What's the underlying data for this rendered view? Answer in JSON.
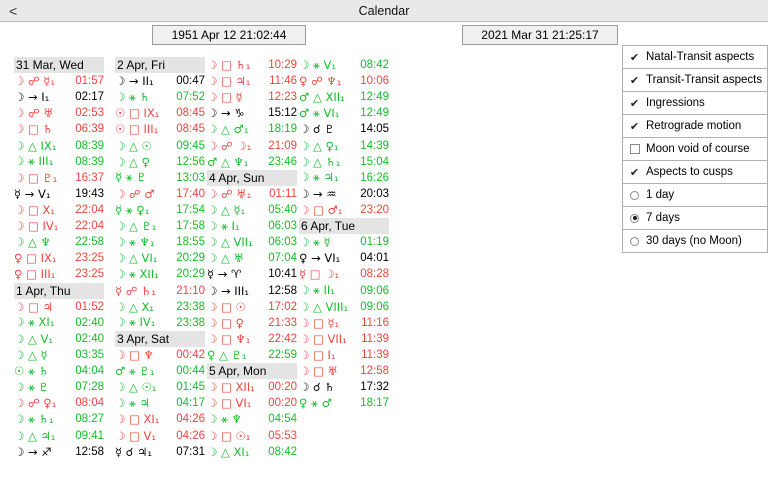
{
  "window": {
    "title": "Calendar",
    "back_label": "<"
  },
  "dates": {
    "natal": "1951 Apr 12 21:02:44",
    "transit": "2021 Mar 31 21:25:17"
  },
  "colors": {
    "hard_aspect": "#ee453e",
    "soft_aspect": "#16bd2b",
    "neutral": "#000000",
    "header_bg": "#e4e4e4"
  },
  "panel": {
    "items": [
      {
        "kind": "checkbox",
        "label": "Natal-Transit aspects",
        "checked": true
      },
      {
        "kind": "checkbox",
        "label": "Transit-Transit aspects",
        "checked": true
      },
      {
        "kind": "checkbox",
        "label": "Ingressions",
        "checked": true
      },
      {
        "kind": "checkbox",
        "label": "Retrograde motion",
        "checked": true
      },
      {
        "kind": "checkbox",
        "label": "Moon void of course",
        "checked": false
      },
      {
        "kind": "checkbox",
        "label": "Aspects to cusps",
        "checked": true
      },
      {
        "kind": "radio",
        "label": "1 day",
        "checked": false
      },
      {
        "kind": "radio",
        "label": "7 days",
        "checked": true
      },
      {
        "kind": "radio",
        "label": "30 days (no Moon)",
        "checked": false
      }
    ]
  },
  "calendar": {
    "columns": [
      {
        "items": [
          {
            "h": "31 Mar, Wed"
          },
          {
            "s": "☽ ☍ ☿₁",
            "t": "01:57",
            "c": "r"
          },
          {
            "s": "☽ → I₁",
            "t": "02:17",
            "c": "k"
          },
          {
            "s": "☽ ☍ ♅",
            "t": "02:53",
            "c": "r"
          },
          {
            "s": "☽ □ ♄",
            "t": "06:39",
            "c": "r"
          },
          {
            "s": "☽ △ IX₁",
            "t": "08:39",
            "c": "g"
          },
          {
            "s": "☽ ⚹ III₁",
            "t": "08:39",
            "c": "g"
          },
          {
            "s": "☽ □ ♇₁",
            "t": "16:37",
            "c": "r"
          },
          {
            "s": "☿ → V₁",
            "t": "19:43",
            "c": "k"
          },
          {
            "s": "☽ □ X₁",
            "t": "22:04",
            "c": "r"
          },
          {
            "s": "☽ □ IV₁",
            "t": "22:04",
            "c": "r"
          },
          {
            "s": "☽ △ ♆",
            "t": "22:58",
            "c": "g"
          },
          {
            "s": "♀ □ IX₁",
            "t": "23:25",
            "c": "r"
          },
          {
            "s": "♀ □ III₁",
            "t": "23:25",
            "c": "r"
          },
          {
            "h": "1 Apr, Thu"
          },
          {
            "s": "☽ □ ♃",
            "t": "01:52",
            "c": "r"
          },
          {
            "s": "☽ ⚹ XI₁",
            "t": "02:40",
            "c": "g"
          },
          {
            "s": "☽ △ V₁",
            "t": "02:40",
            "c": "g"
          },
          {
            "s": "☽ △ ☿",
            "t": "03:35",
            "c": "g"
          },
          {
            "s": "☉ ⚹ ♄",
            "t": "04:04",
            "c": "g"
          },
          {
            "s": "☽ ⚹ ♇",
            "t": "07:28",
            "c": "g"
          },
          {
            "s": "☽ ☍ ♀₁",
            "t": "08:04",
            "c": "r"
          },
          {
            "s": "☽ ⚹ ♄₁",
            "t": "08:27",
            "c": "g"
          },
          {
            "s": "☽ △ ♃₁",
            "t": "09:41",
            "c": "g"
          },
          {
            "s": "☽ → ♐",
            "t": "12:58",
            "c": "k"
          }
        ]
      },
      {
        "items": [
          {
            "h": "2 Apr, Fri"
          },
          {
            "s": "☽ → II₁",
            "t": "00:47",
            "c": "k"
          },
          {
            "s": "☽ ⚹ ♄",
            "t": "07:52",
            "c": "g"
          },
          {
            "s": "☉ □ IX₁",
            "t": "08:45",
            "c": "r"
          },
          {
            "s": "☉ □ III₁",
            "t": "08:45",
            "c": "r"
          },
          {
            "s": "☽ △ ☉",
            "t": "09:45",
            "c": "g"
          },
          {
            "s": "☽ △ ♀",
            "t": "12:56",
            "c": "g"
          },
          {
            "s": "☿ ⚹ ♇",
            "t": "13:03",
            "c": "g"
          },
          {
            "s": "☽ ☍ ♂",
            "t": "17:40",
            "c": "r"
          },
          {
            "s": "☿ ⚹ ♀₁",
            "t": "17:54",
            "c": "g"
          },
          {
            "s": "☽ △ ♇₁",
            "t": "17:58",
            "c": "g"
          },
          {
            "s": "☽ ⚹ ♆₁",
            "t": "18:55",
            "c": "g"
          },
          {
            "s": "☽ △ VI₁",
            "t": "20:29",
            "c": "g"
          },
          {
            "s": "☽ ⚹ XII₁",
            "t": "20:29",
            "c": "g"
          },
          {
            "s": "☿ ☍ ♄₁",
            "t": "21:10",
            "c": "r"
          },
          {
            "s": "☽ △ X₁",
            "t": "23:38",
            "c": "g"
          },
          {
            "s": "☽ ⚹ IV₁",
            "t": "23:38",
            "c": "g"
          },
          {
            "h": "3 Apr, Sat"
          },
          {
            "s": "☽ □ ♆",
            "t": "00:42",
            "c": "r"
          },
          {
            "s": "♂ ⚹ ♇₁",
            "t": "00:44",
            "c": "g"
          },
          {
            "s": "☽ △ ☉₁",
            "t": "01:45",
            "c": "g"
          },
          {
            "s": "☽ ⚹ ♃",
            "t": "04:17",
            "c": "g"
          },
          {
            "s": "☽ □ XI₁",
            "t": "04:26",
            "c": "r"
          },
          {
            "s": "☽ □ V₁",
            "t": "04:26",
            "c": "r"
          },
          {
            "s": "☿ ☌ ♃₁",
            "t": "07:31",
            "c": "k"
          }
        ]
      },
      {
        "items": [
          {
            "s": "☽ □ ♄₁",
            "t": "10:29",
            "c": "r"
          },
          {
            "s": "☽ □ ♃₁",
            "t": "11:46",
            "c": "r"
          },
          {
            "s": "☽ □ ☿",
            "t": "12:23",
            "c": "r"
          },
          {
            "s": "☽ → ♑",
            "t": "15:12",
            "c": "k"
          },
          {
            "s": "☽ △ ♂₁",
            "t": "18:19",
            "c": "g"
          },
          {
            "s": "☽ ☍ ☽₁",
            "t": "21:09",
            "c": "r"
          },
          {
            "s": "♂ △ ♆₁",
            "t": "23:46",
            "c": "g"
          },
          {
            "h": "4 Apr, Sun"
          },
          {
            "s": "☽ ☍ ♅₁",
            "t": "01:11",
            "c": "r"
          },
          {
            "s": "☽ △ ☿₁",
            "t": "05:40",
            "c": "g"
          },
          {
            "s": "☽ ⚹ I₁",
            "t": "06:03",
            "c": "g"
          },
          {
            "s": "☽ △ VII₁",
            "t": "06:03",
            "c": "g"
          },
          {
            "s": "☽ △ ♅",
            "t": "07:04",
            "c": "g"
          },
          {
            "s": "☿ → ♈",
            "t": "10:41",
            "c": "k"
          },
          {
            "s": "☽ → III₁",
            "t": "12:58",
            "c": "k"
          },
          {
            "s": "☽ □ ☉",
            "t": "17:02",
            "c": "r"
          },
          {
            "s": "☽ □ ♀",
            "t": "21:33",
            "c": "r"
          },
          {
            "s": "☽ □ ♆₁",
            "t": "22:42",
            "c": "r"
          },
          {
            "s": "♀ △ ♇₁",
            "t": "22:59",
            "c": "g"
          },
          {
            "h": "5 Apr, Mon"
          },
          {
            "s": "☽ □ XII₁",
            "t": "00:20",
            "c": "r"
          },
          {
            "s": "☽ □ VI₁",
            "t": "00:20",
            "c": "r"
          },
          {
            "s": "☽ ⚹ ♆",
            "t": "04:54",
            "c": "g"
          },
          {
            "s": "☽ □ ☉₁",
            "t": "05:53",
            "c": "r"
          },
          {
            "s": "☽ △ XI₁",
            "t": "08:42",
            "c": "g"
          }
        ]
      },
      {
        "items": [
          {
            "s": "☽ ⚹ V₁",
            "t": "08:42",
            "c": "g"
          },
          {
            "s": "♀ ☍ ♆₁",
            "t": "10:06",
            "c": "r"
          },
          {
            "s": "♂ △ XII₁",
            "t": "12:49",
            "c": "g"
          },
          {
            "s": "♂ ⚹ VI₁",
            "t": "12:49",
            "c": "g"
          },
          {
            "s": "☽ ☌ ♇",
            "t": "14:05",
            "c": "k"
          },
          {
            "s": "☽ △ ♀₁",
            "t": "14:39",
            "c": "g"
          },
          {
            "s": "☽ △ ♄₁",
            "t": "15:04",
            "c": "g"
          },
          {
            "s": "☽ ⚹ ♃₁",
            "t": "16:26",
            "c": "g"
          },
          {
            "s": "☽ → ♒",
            "t": "20:03",
            "c": "k"
          },
          {
            "s": "☽ □ ♂₁",
            "t": "23:20",
            "c": "r"
          },
          {
            "h": "6 Apr, Tue"
          },
          {
            "s": "☽ ⚹ ☿",
            "t": "01:19",
            "c": "g"
          },
          {
            "s": "♀ → VI₁",
            "t": "04:01",
            "c": "k"
          },
          {
            "s": "☿ □ ☽₁",
            "t": "08:28",
            "c": "r"
          },
          {
            "s": "☽ ⚹ II₁",
            "t": "09:06",
            "c": "g"
          },
          {
            "s": "☽ △ VIII₁",
            "t": "09:06",
            "c": "g"
          },
          {
            "s": "☽ □ ☿₁",
            "t": "11:16",
            "c": "r"
          },
          {
            "s": "☽ □ VII₁",
            "t": "11:39",
            "c": "r"
          },
          {
            "s": "☽ □ I₁",
            "t": "11:39",
            "c": "r"
          },
          {
            "s": "☽ □ ♅",
            "t": "12:58",
            "c": "r"
          },
          {
            "s": "☽ ☌ ♄",
            "t": "17:32",
            "c": "k"
          },
          {
            "s": "♀ ⚹ ♂",
            "t": "18:17",
            "c": "g"
          }
        ]
      }
    ]
  }
}
